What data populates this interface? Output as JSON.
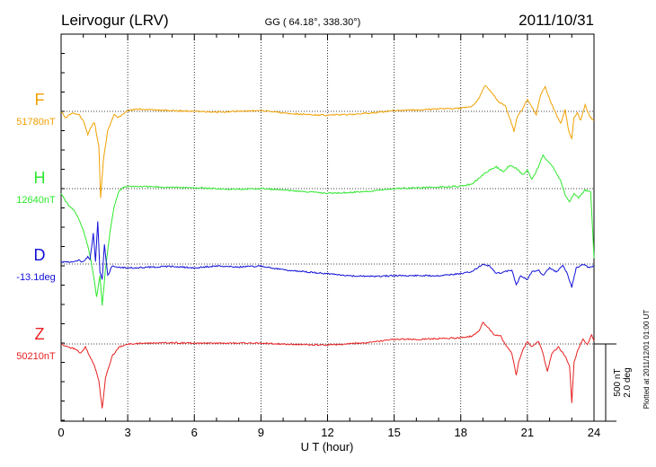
{
  "header": {
    "station": "Leirvogur (LRV)",
    "coords": "GG ( 64.18°, 338.30°)",
    "date": "2011/10/31"
  },
  "side_note": "Plotted at 2011/12/01 01:00 UT",
  "scale_labels": [
    "500 nT",
    "2.0 deg"
  ],
  "chart_data": {
    "type": "line",
    "title": "Leirvogur (LRV)",
    "xlabel": "U T (hour)",
    "ylabel": "",
    "xlim": [
      0,
      24
    ],
    "x_ticks": [
      0,
      3,
      6,
      9,
      12,
      15,
      18,
      21,
      24
    ],
    "x_tick_labels": [
      "0",
      "3",
      "6",
      "9",
      "12",
      "15",
      "18",
      "21",
      "24"
    ],
    "grid": "vertical dotted lines at 3-hour intervals; dotted baseline per trace",
    "scale_bar": {
      "value": 500,
      "unit": "nT",
      "angle": 2.0,
      "angle_unit": "deg"
    },
    "series": [
      {
        "name": "F",
        "baseline_label": "51780nT",
        "unit": "nT",
        "baseline": 51780,
        "color": "#f0a000",
        "points": [
          [
            0,
            0
          ],
          [
            0.2,
            -40
          ],
          [
            0.5,
            -10
          ],
          [
            0.8,
            -20
          ],
          [
            1.0,
            -60
          ],
          [
            1.2,
            -150
          ],
          [
            1.35,
            -100
          ],
          [
            1.5,
            -70
          ],
          [
            1.7,
            -230
          ],
          [
            1.78,
            -560
          ],
          [
            1.9,
            -320
          ],
          [
            2.1,
            -120
          ],
          [
            2.4,
            -20
          ],
          [
            2.6,
            -40
          ],
          [
            3.0,
            5
          ],
          [
            3.5,
            15
          ],
          [
            4,
            10
          ],
          [
            5,
            5
          ],
          [
            6,
            0
          ],
          [
            7,
            -5
          ],
          [
            8,
            0
          ],
          [
            9,
            5
          ],
          [
            10,
            -10
          ],
          [
            11,
            -20
          ],
          [
            12,
            -25
          ],
          [
            13,
            -20
          ],
          [
            14,
            -10
          ],
          [
            15,
            5
          ],
          [
            16,
            10
          ],
          [
            17,
            15
          ],
          [
            18,
            20
          ],
          [
            18.5,
            30
          ],
          [
            18.8,
            80
          ],
          [
            19.1,
            170
          ],
          [
            19.4,
            120
          ],
          [
            19.7,
            60
          ],
          [
            20,
            40
          ],
          [
            20.2,
            -40
          ],
          [
            20.4,
            -130
          ],
          [
            20.55,
            -30
          ],
          [
            20.8,
            20
          ],
          [
            21,
            80
          ],
          [
            21.2,
            30
          ],
          [
            21.4,
            -20
          ],
          [
            21.6,
            110
          ],
          [
            21.8,
            160
          ],
          [
            22.0,
            80
          ],
          [
            22.3,
            -20
          ],
          [
            22.5,
            -80
          ],
          [
            22.7,
            10
          ],
          [
            22.85,
            -120
          ],
          [
            23.0,
            -180
          ],
          [
            23.1,
            -40
          ],
          [
            23.25,
            -10
          ],
          [
            23.4,
            -60
          ],
          [
            23.6,
            40
          ],
          [
            23.8,
            -30
          ],
          [
            24,
            -60
          ]
        ]
      },
      {
        "name": "H",
        "baseline_label": "12640nT",
        "unit": "nT",
        "baseline": 12640,
        "color": "#2ee82e",
        "points": [
          [
            0,
            -30
          ],
          [
            0.2,
            -80
          ],
          [
            0.4,
            -120
          ],
          [
            0.6,
            -140
          ],
          [
            0.8,
            -200
          ],
          [
            1.0,
            -270
          ],
          [
            1.2,
            -370
          ],
          [
            1.35,
            -470
          ],
          [
            1.5,
            -600
          ],
          [
            1.6,
            -700
          ],
          [
            1.75,
            -560
          ],
          [
            1.85,
            -760
          ],
          [
            2.0,
            -520
          ],
          [
            2.2,
            -280
          ],
          [
            2.4,
            -110
          ],
          [
            2.6,
            -20
          ],
          [
            2.8,
            10
          ],
          [
            3.0,
            15
          ],
          [
            4,
            12
          ],
          [
            5,
            8
          ],
          [
            6,
            5
          ],
          [
            7,
            0
          ],
          [
            8,
            -5
          ],
          [
            9,
            0
          ],
          [
            10,
            -10
          ],
          [
            11,
            -20
          ],
          [
            12,
            -30
          ],
          [
            13,
            -25
          ],
          [
            14,
            -15
          ],
          [
            15,
            0
          ],
          [
            16,
            5
          ],
          [
            17,
            10
          ],
          [
            18,
            15
          ],
          [
            18.5,
            30
          ],
          [
            19.0,
            90
          ],
          [
            19.3,
            120
          ],
          [
            19.6,
            140
          ],
          [
            19.9,
            110
          ],
          [
            20.2,
            150
          ],
          [
            20.5,
            130
          ],
          [
            20.8,
            90
          ],
          [
            21.0,
            120
          ],
          [
            21.2,
            60
          ],
          [
            21.5,
            140
          ],
          [
            21.7,
            220
          ],
          [
            21.9,
            180
          ],
          [
            22.1,
            150
          ],
          [
            22.3,
            100
          ],
          [
            22.5,
            50
          ],
          [
            22.7,
            -40
          ],
          [
            22.9,
            -90
          ],
          [
            23.1,
            -30
          ],
          [
            23.3,
            -60
          ],
          [
            23.6,
            -10
          ],
          [
            23.85,
            -20
          ],
          [
            23.95,
            -300
          ],
          [
            24,
            -450
          ]
        ]
      },
      {
        "name": "D",
        "baseline_label": "-13.1deg",
        "unit": "deg",
        "baseline": -13.1,
        "color": "#1010d8",
        "points": [
          [
            0,
            0.05
          ],
          [
            0.4,
            0.05
          ],
          [
            0.8,
            0.1
          ],
          [
            1.0,
            0.05
          ],
          [
            1.2,
            0.2
          ],
          [
            1.3,
            0.1
          ],
          [
            1.45,
            0.8
          ],
          [
            1.55,
            0.05
          ],
          [
            1.65,
            1.1
          ],
          [
            1.75,
            -0.2
          ],
          [
            1.85,
            -0.4
          ],
          [
            1.95,
            0.5
          ],
          [
            2.1,
            -0.3
          ],
          [
            2.3,
            -0.05
          ],
          [
            2.6,
            -0.08
          ],
          [
            3,
            -0.1
          ],
          [
            4,
            -0.08
          ],
          [
            5,
            -0.06
          ],
          [
            6,
            -0.1
          ],
          [
            7,
            -0.05
          ],
          [
            8,
            -0.08
          ],
          [
            9,
            -0.05
          ],
          [
            10,
            -0.15
          ],
          [
            11,
            -0.2
          ],
          [
            12,
            -0.25
          ],
          [
            13,
            -0.3
          ],
          [
            14,
            -0.32
          ],
          [
            15,
            -0.3
          ],
          [
            16,
            -0.3
          ],
          [
            17,
            -0.3
          ],
          [
            18,
            -0.25
          ],
          [
            18.5,
            -0.2
          ],
          [
            19.0,
            0
          ],
          [
            19.3,
            -0.05
          ],
          [
            19.6,
            -0.25
          ],
          [
            20.0,
            -0.2
          ],
          [
            20.3,
            -0.15
          ],
          [
            20.5,
            -0.55
          ],
          [
            20.7,
            -0.3
          ],
          [
            21.0,
            -0.4
          ],
          [
            21.2,
            -0.2
          ],
          [
            21.5,
            -0.15
          ],
          [
            21.7,
            -0.3
          ],
          [
            22.0,
            -0.1
          ],
          [
            22.3,
            -0.2
          ],
          [
            22.6,
            -0.05
          ],
          [
            22.8,
            -0.25
          ],
          [
            23.0,
            -0.6
          ],
          [
            23.2,
            -0.1
          ],
          [
            23.5,
            0
          ],
          [
            23.8,
            -0.1
          ],
          [
            24,
            -0.05
          ]
        ]
      },
      {
        "name": "Z",
        "baseline_label": "50210nT",
        "unit": "nT",
        "baseline": 50210,
        "color": "#e82020",
        "points": [
          [
            0,
            0
          ],
          [
            0.3,
            -20
          ],
          [
            0.6,
            -30
          ],
          [
            0.9,
            -60
          ],
          [
            1.1,
            -20
          ],
          [
            1.3,
            -80
          ],
          [
            1.5,
            -140
          ],
          [
            1.7,
            -240
          ],
          [
            1.85,
            -420
          ],
          [
            2.0,
            -220
          ],
          [
            2.3,
            -80
          ],
          [
            2.6,
            -20
          ],
          [
            3.0,
            0
          ],
          [
            4,
            5
          ],
          [
            5,
            8
          ],
          [
            6,
            5
          ],
          [
            7,
            5
          ],
          [
            8,
            5
          ],
          [
            9,
            5
          ],
          [
            10,
            0
          ],
          [
            11,
            -5
          ],
          [
            12,
            -5
          ],
          [
            13,
            0
          ],
          [
            14,
            10
          ],
          [
            15,
            30
          ],
          [
            16,
            30
          ],
          [
            17,
            35
          ],
          [
            18,
            40
          ],
          [
            18.5,
            50
          ],
          [
            18.8,
            80
          ],
          [
            19.0,
            140
          ],
          [
            19.2,
            110
          ],
          [
            19.5,
            60
          ],
          [
            19.8,
            50
          ],
          [
            20.0,
            0
          ],
          [
            20.3,
            -60
          ],
          [
            20.5,
            -200
          ],
          [
            20.6,
            -120
          ],
          [
            20.8,
            -40
          ],
          [
            21.0,
            20
          ],
          [
            21.2,
            -20
          ],
          [
            21.5,
            20
          ],
          [
            21.7,
            -60
          ],
          [
            21.9,
            -180
          ],
          [
            22.1,
            -60
          ],
          [
            22.4,
            -20
          ],
          [
            22.7,
            -80
          ],
          [
            22.9,
            -140
          ],
          [
            23.0,
            -380
          ],
          [
            23.1,
            -120
          ],
          [
            23.3,
            -30
          ],
          [
            23.5,
            30
          ],
          [
            23.7,
            0
          ],
          [
            23.9,
            60
          ],
          [
            24,
            20
          ]
        ]
      }
    ]
  }
}
